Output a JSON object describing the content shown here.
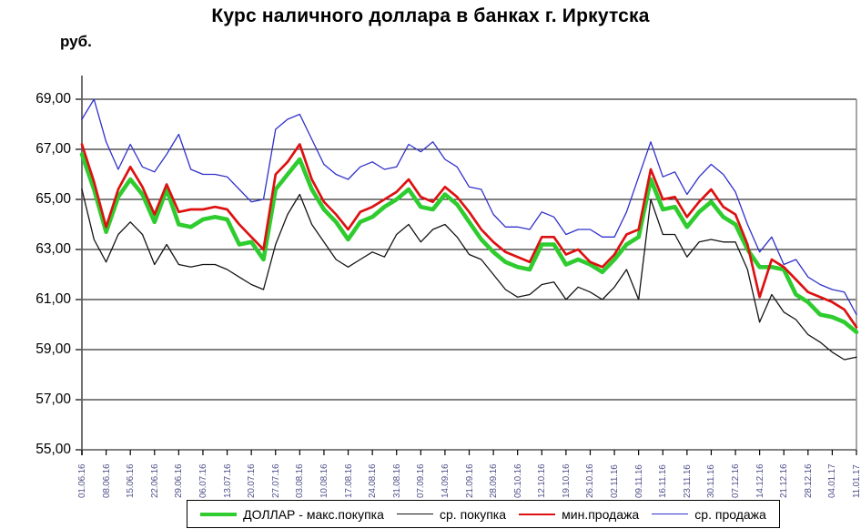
{
  "title": "Курс наличного доллара в банках г. Иркутска",
  "y_unit": "руб.",
  "chart_data": {
    "type": "line",
    "title": "Курс наличного доллара в банках г. Иркутска",
    "ylabel": "руб.",
    "xlabel": "",
    "ylim": [
      55,
      69
    ],
    "ytick_step": 2,
    "ytick_labels": [
      "69,00",
      "67,00",
      "65,00",
      "63,00",
      "61,00",
      "59,00",
      "57,00",
      "55,00"
    ],
    "grid": true,
    "legend_position": "bottom",
    "x_tick_labels": [
      "01.06.16",
      "08.06.16",
      "15.06.16",
      "22.06.16",
      "29.06.16",
      "06.07.16",
      "13.07.16",
      "20.07.16",
      "27.07.16",
      "03.08.16",
      "10.08.16",
      "17.08.16",
      "24.08.16",
      "31.08.16",
      "07.09.16",
      "14.09.16",
      "21.09.16",
      "28.09.16",
      "05.10.16",
      "12.10.16",
      "19.10.16",
      "26.10.16",
      "02.11.16",
      "09.11.16",
      "16.11.16",
      "23.11.16",
      "30.11.16",
      "07.12.16",
      "14.12.16",
      "21.12.16",
      "28.12.16",
      "04.01.17",
      "11.01.17"
    ],
    "samples_per_week": 2,
    "sampling_note": "values estimated twice weekly; x tick labels are weekly",
    "series": [
      {
        "id": "dollar-max-buy",
        "name": "ДОЛЛАР - макс.покупка",
        "color": "#2ecc2e",
        "stroke_width": 4.6,
        "values": [
          66.8,
          65.4,
          63.7,
          65.1,
          65.8,
          65.2,
          64.1,
          65.4,
          64.0,
          63.9,
          64.2,
          64.3,
          64.2,
          63.2,
          63.3,
          62.6,
          65.4,
          66.0,
          66.6,
          65.4,
          64.6,
          64.1,
          63.4,
          64.1,
          64.3,
          64.7,
          65.0,
          65.4,
          64.7,
          64.6,
          65.2,
          64.8,
          64.1,
          63.4,
          62.9,
          62.5,
          62.3,
          62.2,
          63.2,
          63.2,
          62.4,
          62.6,
          62.4,
          62.1,
          62.6,
          63.2,
          63.5,
          65.8,
          64.6,
          64.7,
          63.9,
          64.5,
          64.9,
          64.3,
          64.0,
          63.0,
          62.3,
          62.3,
          62.2,
          61.2,
          60.9,
          60.4,
          60.3,
          60.1,
          59.7
        ]
      },
      {
        "id": "avg-buy",
        "name": "ср. покупка",
        "color": "#141414",
        "stroke_width": 1.3,
        "values": [
          65.4,
          63.4,
          62.5,
          63.6,
          64.1,
          63.6,
          62.4,
          63.2,
          62.4,
          62.3,
          62.4,
          62.4,
          62.2,
          61.9,
          61.6,
          61.4,
          63.2,
          64.4,
          65.2,
          64.0,
          63.3,
          62.6,
          62.3,
          62.6,
          62.9,
          62.7,
          63.6,
          64.0,
          63.3,
          63.8,
          64.0,
          63.5,
          62.8,
          62.6,
          62.0,
          61.4,
          61.1,
          61.2,
          61.6,
          61.7,
          61.0,
          61.5,
          61.3,
          61.0,
          61.5,
          62.2,
          61.0,
          65.0,
          63.6,
          63.6,
          62.7,
          63.3,
          63.4,
          63.3,
          63.3,
          62.2,
          60.1,
          61.2,
          60.5,
          60.2,
          59.6,
          59.3,
          58.9,
          58.6,
          58.7
        ]
      },
      {
        "id": "min-sell",
        "name": "мин.продажа",
        "color": "#dd1111",
        "stroke_width": 2.7,
        "values": [
          67.2,
          65.7,
          63.9,
          65.4,
          66.3,
          65.5,
          64.4,
          65.6,
          64.5,
          64.6,
          64.6,
          64.7,
          64.6,
          64.0,
          63.5,
          63.0,
          66.0,
          66.5,
          67.2,
          65.8,
          64.9,
          64.4,
          63.8,
          64.5,
          64.7,
          65.0,
          65.3,
          65.8,
          65.1,
          64.9,
          65.5,
          65.1,
          64.5,
          63.8,
          63.3,
          62.9,
          62.7,
          62.5,
          63.5,
          63.5,
          62.8,
          63.0,
          62.5,
          62.3,
          62.8,
          63.6,
          63.8,
          66.2,
          65.0,
          65.1,
          64.3,
          64.9,
          65.4,
          64.7,
          64.4,
          63.2,
          61.1,
          62.6,
          62.3,
          61.8,
          61.3,
          61.1,
          60.9,
          60.6,
          59.9
        ]
      },
      {
        "id": "avg-sell",
        "name": "ср. продажа",
        "color": "#3030cc",
        "stroke_width": 1.3,
        "values": [
          68.2,
          69.0,
          67.3,
          66.2,
          67.2,
          66.3,
          66.1,
          66.8,
          67.6,
          66.2,
          66.0,
          66.0,
          65.9,
          65.4,
          64.9,
          65.0,
          67.8,
          68.2,
          68.4,
          67.4,
          66.4,
          66.0,
          65.8,
          66.3,
          66.5,
          66.2,
          66.3,
          67.2,
          66.9,
          67.3,
          66.6,
          66.3,
          65.5,
          65.4,
          64.4,
          63.9,
          63.9,
          63.8,
          64.5,
          64.3,
          63.6,
          63.8,
          63.8,
          63.5,
          63.5,
          64.5,
          65.9,
          67.3,
          65.9,
          66.1,
          65.2,
          65.9,
          66.4,
          66.0,
          65.3,
          64.0,
          62.9,
          63.5,
          62.4,
          62.6,
          61.9,
          61.6,
          61.4,
          61.3,
          60.4
        ]
      }
    ]
  }
}
